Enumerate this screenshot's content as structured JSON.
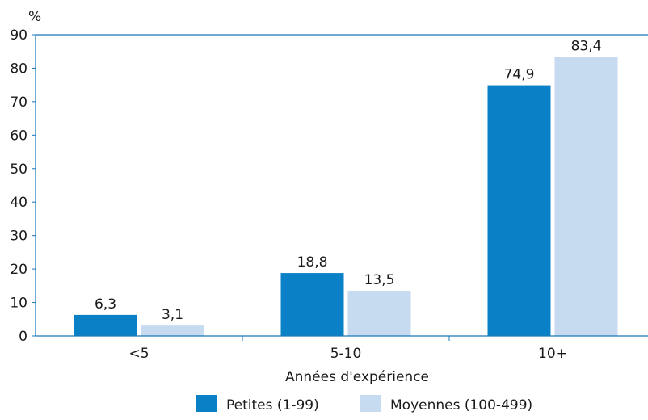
{
  "chart_data": {
    "type": "bar",
    "title": "",
    "ylabel": "%",
    "xlabel": "Années d'expérience",
    "categories": [
      "<5",
      "5-10",
      "10+"
    ],
    "series": [
      {
        "name": "Petites (1-99)",
        "color": "#0a80c6",
        "values": [
          6.3,
          18.8,
          74.9
        ],
        "labels": [
          "6,3",
          "18,8",
          "74,9"
        ]
      },
      {
        "name": "Moyennes (100-499)",
        "color": "#c6daf0",
        "values": [
          3.1,
          13.5,
          83.4
        ],
        "labels": [
          "3,1",
          "13,5",
          "83,4"
        ]
      }
    ],
    "ylim": [
      0,
      90
    ],
    "yticks": [
      "0",
      "10",
      "20",
      "30",
      "40",
      "50",
      "60",
      "70",
      "80",
      "90"
    ],
    "grid": false,
    "legend_position": "bottom",
    "axis_color": "#1a78b8"
  }
}
